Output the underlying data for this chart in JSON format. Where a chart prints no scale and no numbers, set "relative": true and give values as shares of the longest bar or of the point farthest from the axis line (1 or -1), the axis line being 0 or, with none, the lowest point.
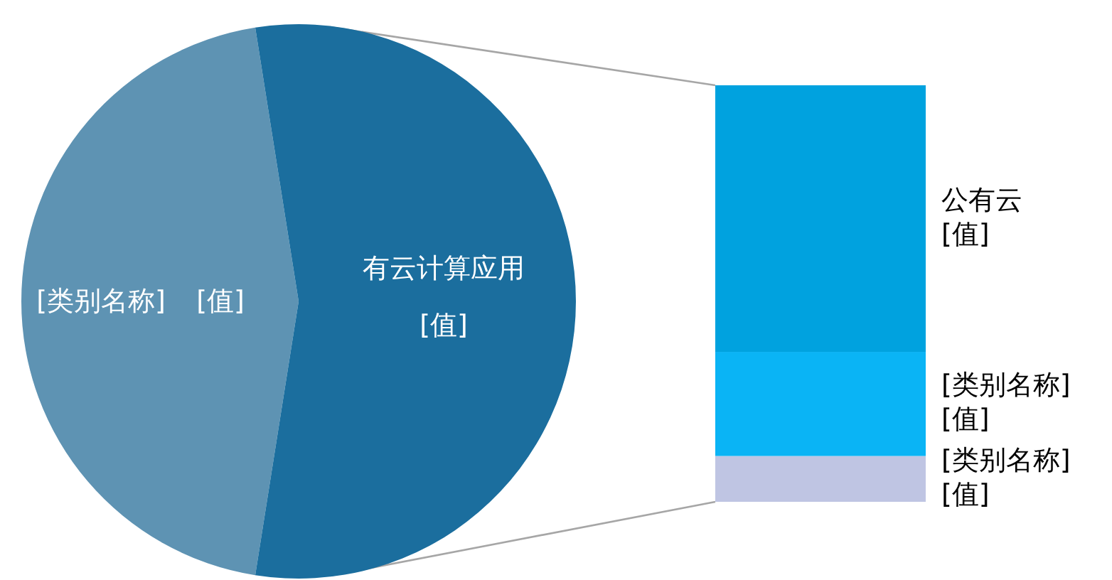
{
  "chart_data": [
    {
      "type": "pie",
      "categories": [
        "[类别名称]",
        "有云计算应用"
      ],
      "values": [
        45,
        55
      ],
      "colors": [
        "#5e93b3",
        "#1b6e9e"
      ],
      "value_labels": [
        "[值]",
        "[值]"
      ]
    },
    {
      "type": "bar",
      "stacked": true,
      "relative": true,
      "categories": [
        null
      ],
      "series": [
        {
          "name": "[类别名称]\n[值]",
          "color": "#bfc5e3",
          "values": [
            0.11
          ]
        },
        {
          "name": "[类别名称]\n[值]",
          "color": "#0ab4f5",
          "values": [
            0.25
          ]
        },
        {
          "name": "公有云\n[值]",
          "color": "#00a2df",
          "values": [
            0.64
          ]
        }
      ]
    }
  ]
}
